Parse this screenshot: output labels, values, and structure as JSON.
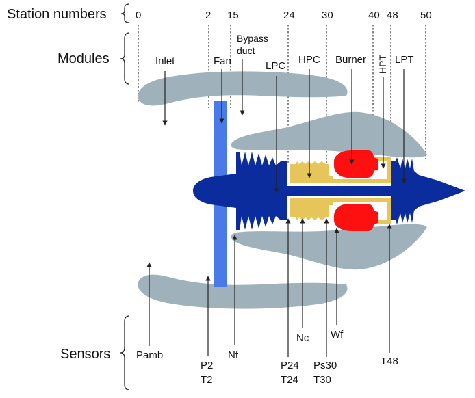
{
  "rows": {
    "stations_title": "Station numbers",
    "modules_title": "Modules",
    "sensors_title": "Sensors"
  },
  "stations": [
    "0",
    "2",
    "15",
    "24",
    "30",
    "40",
    "48",
    "50"
  ],
  "modules": {
    "inlet": "Inlet",
    "fan": "Fan",
    "bypass_line1": "Bypass",
    "bypass_line2": "duct",
    "lpc": "LPC",
    "hpc": "HPC",
    "burner": "Burner",
    "hpt": "HPT",
    "lpt": "LPT"
  },
  "sensors": {
    "pamb": "Pamb",
    "p2": "P2",
    "t2": "T2",
    "nf": "Nf",
    "p24": "P24",
    "t24": "T24",
    "nc": "Nc",
    "ps30": "Ps30",
    "t30": "T30",
    "wf": "Wf",
    "t48": "T48"
  },
  "colors": {
    "nacelle": "#9fb2bb",
    "fan": "#4a79e8",
    "low_spool": "#0b2c9c",
    "high_spool": "#e6c65a",
    "burner": "#ff1010",
    "background": "#ffffff"
  }
}
